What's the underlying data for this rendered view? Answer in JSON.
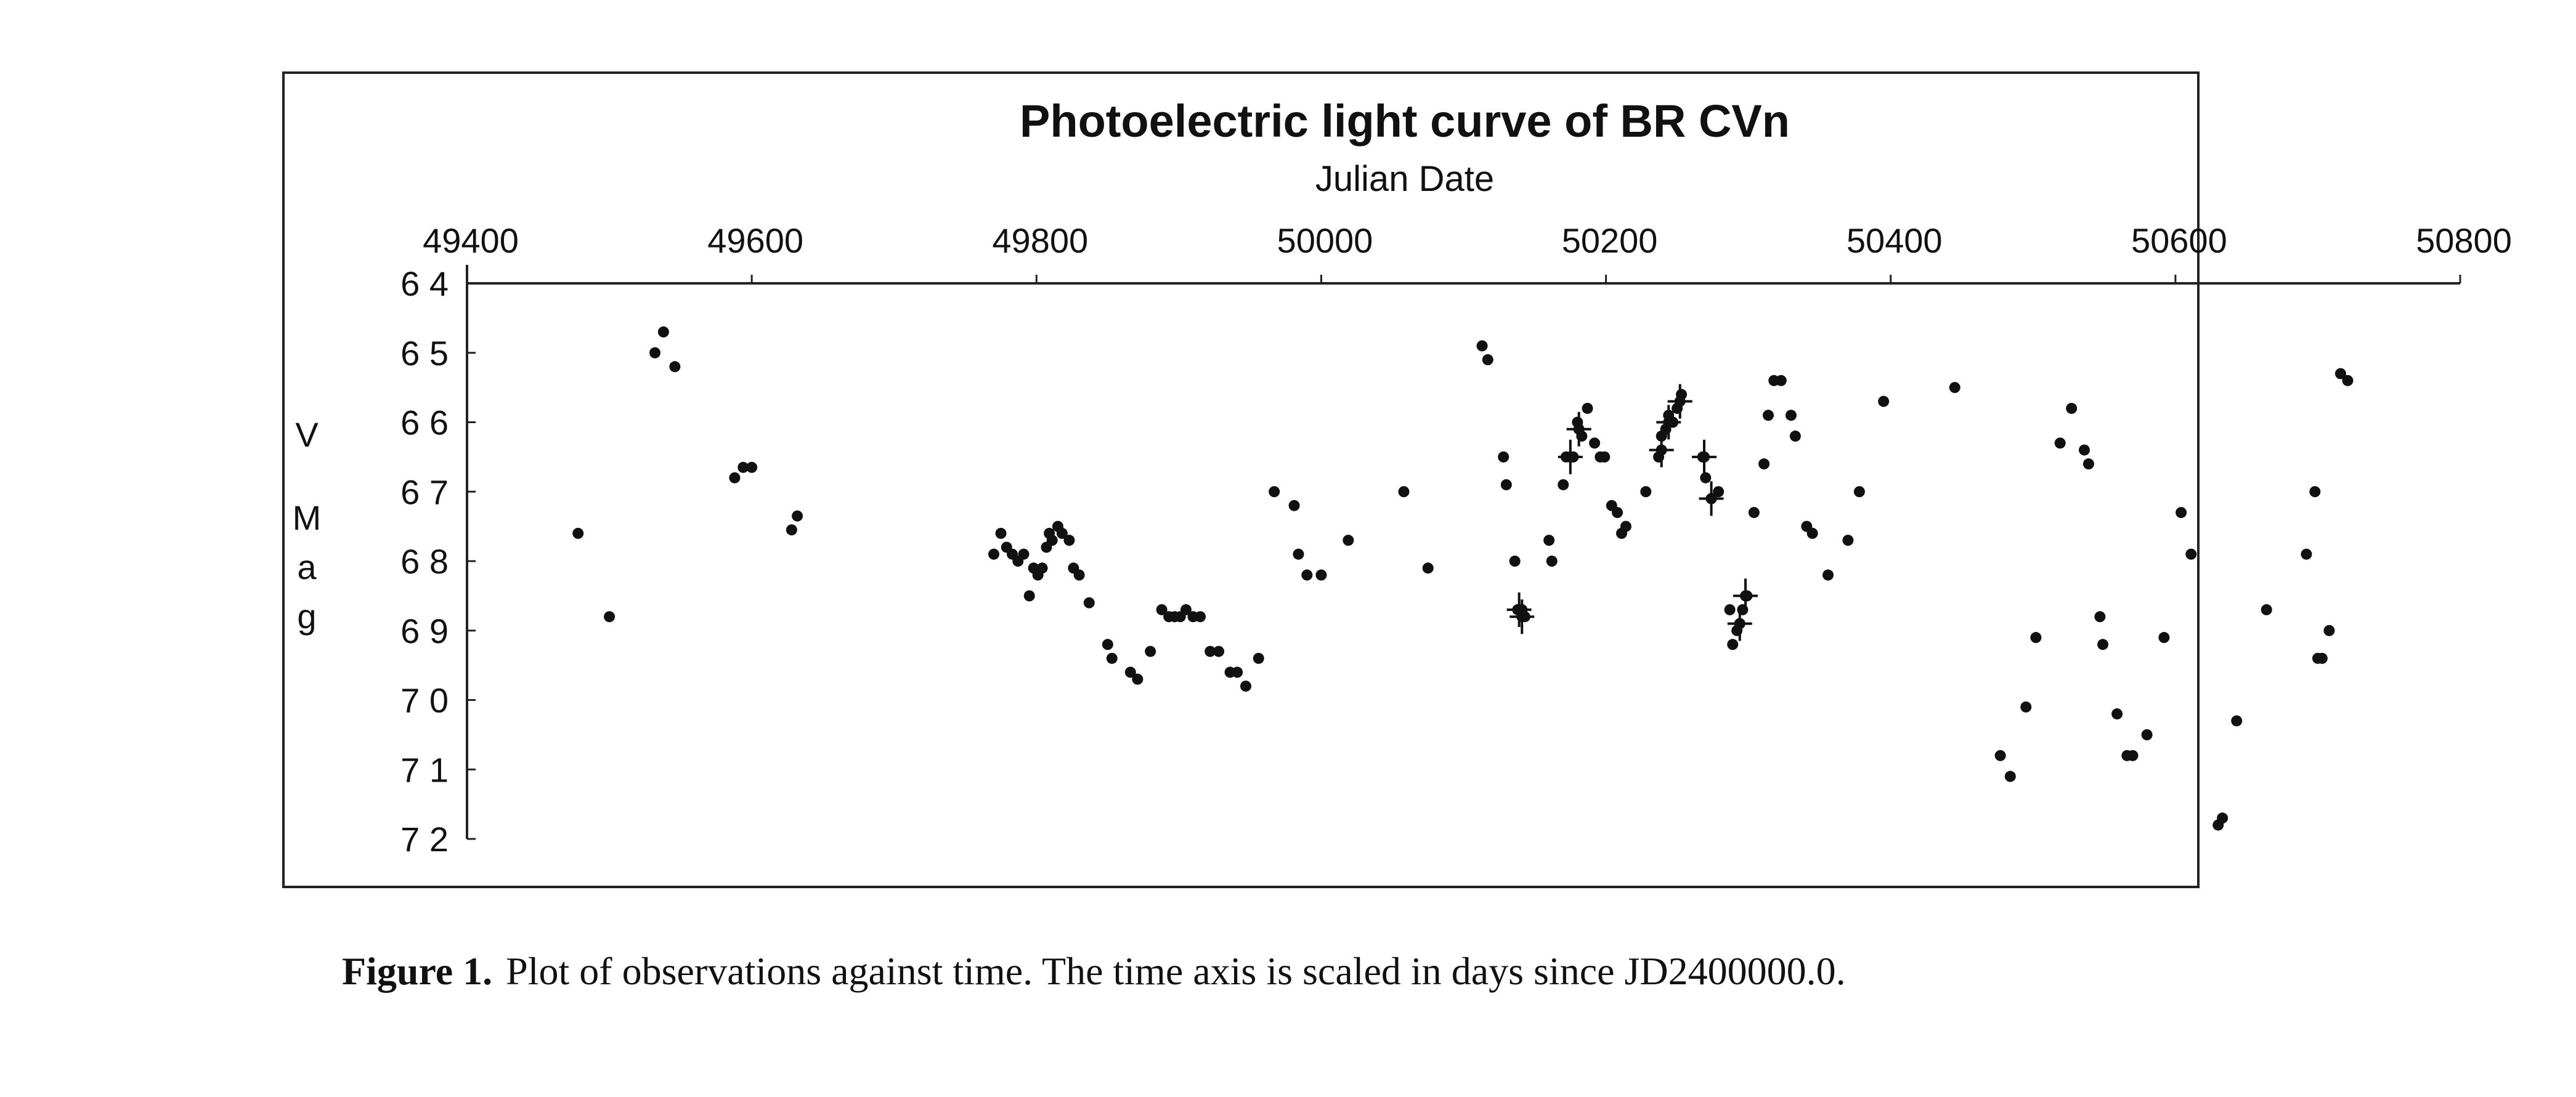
{
  "chart_data": {
    "type": "scatter",
    "title": "Photoelectric light curve of BR CVn",
    "xlabel": "Julian Date",
    "ylabel_letters": [
      "V",
      "M",
      "a",
      "g"
    ],
    "xlim": [
      49400,
      50800
    ],
    "ylim": [
      6.4,
      7.2
    ],
    "y_inverted": true,
    "x_axis_position": "top",
    "x_ticks": [
      49400,
      49600,
      49800,
      50000,
      50200,
      50400,
      50600,
      50800
    ],
    "x_tick_labels": [
      "49400",
      "49600",
      "49800",
      "50000",
      "50200",
      "50400",
      "50600",
      "50800"
    ],
    "y_ticks": [
      6.4,
      6.5,
      6.6,
      6.7,
      6.8,
      6.9,
      7.0,
      7.1,
      7.2
    ],
    "y_tick_labels": [
      "6 4",
      "6 5",
      "6 6",
      "6 7",
      "6 8",
      "6 9",
      "7 0",
      "7 1",
      "7 2"
    ],
    "grid": false,
    "legend": "none",
    "marker_color": "#111111",
    "points": [
      [
        49478,
        6.76
      ],
      [
        49500,
        6.88
      ],
      [
        49532,
        6.5
      ],
      [
        49538,
        6.47
      ],
      [
        49546,
        6.52
      ],
      [
        49588,
        6.68
      ],
      [
        49594,
        6.665
      ],
      [
        49600,
        6.665
      ],
      [
        49628,
        6.755
      ],
      [
        49632,
        6.735
      ],
      [
        49770,
        6.79
      ],
      [
        49775,
        6.76
      ],
      [
        49779,
        6.78
      ],
      [
        49783,
        6.79
      ],
      [
        49787,
        6.8
      ],
      [
        49791,
        6.79
      ],
      [
        49795,
        6.85
      ],
      [
        49798,
        6.81
      ],
      [
        49801,
        6.82
      ],
      [
        49804,
        6.81
      ],
      [
        49807,
        6.78
      ],
      [
        49809,
        6.76
      ],
      [
        49811,
        6.77
      ],
      [
        49815,
        6.75
      ],
      [
        49818,
        6.76
      ],
      [
        49823,
        6.77
      ],
      [
        49826,
        6.81
      ],
      [
        49830,
        6.82
      ],
      [
        49837,
        6.86
      ],
      [
        49850,
        6.92
      ],
      [
        49853,
        6.94
      ],
      [
        49866,
        6.96
      ],
      [
        49871,
        6.97
      ],
      [
        49880,
        6.93
      ],
      [
        49888,
        6.87
      ],
      [
        49893,
        6.88
      ],
      [
        49897,
        6.88
      ],
      [
        49901,
        6.88
      ],
      [
        49905,
        6.87
      ],
      [
        49910,
        6.88
      ],
      [
        49915,
        6.88
      ],
      [
        49922,
        6.93
      ],
      [
        49928,
        6.93
      ],
      [
        49936,
        6.96
      ],
      [
        49941,
        6.96
      ],
      [
        49947,
        6.98
      ],
      [
        49956,
        6.94
      ],
      [
        49967,
        6.7
      ],
      [
        49981,
        6.72
      ],
      [
        49984,
        6.79
      ],
      [
        49990,
        6.82
      ],
      [
        50000,
        6.82
      ],
      [
        50019,
        6.77
      ],
      [
        50058,
        6.7
      ],
      [
        50075,
        6.81
      ],
      [
        50113,
        6.49
      ],
      [
        50117,
        6.51
      ],
      [
        50128,
        6.65
      ],
      [
        50130,
        6.69
      ],
      [
        50136,
        6.8
      ],
      [
        50138,
        6.87
      ],
      [
        50141,
        6.87
      ],
      [
        50143,
        6.88
      ],
      [
        50160,
        6.77
      ],
      [
        50162,
        6.8
      ],
      [
        50170,
        6.69
      ],
      [
        50172,
        6.65
      ],
      [
        50177,
        6.65
      ],
      [
        50180,
        6.6
      ],
      [
        50183,
        6.62
      ],
      [
        50187,
        6.58
      ],
      [
        50192,
        6.63
      ],
      [
        50196,
        6.65
      ],
      [
        50199,
        6.65
      ],
      [
        50204,
        6.72
      ],
      [
        50208,
        6.73
      ],
      [
        50211,
        6.76
      ],
      [
        50214,
        6.75
      ],
      [
        50228,
        6.7
      ],
      [
        50237,
        6.65
      ],
      [
        50239,
        6.62
      ],
      [
        50242,
        6.61
      ],
      [
        50244,
        6.59
      ],
      [
        50247,
        6.6
      ],
      [
        50250,
        6.58
      ],
      [
        50253,
        6.56
      ],
      [
        50268,
        6.65
      ],
      [
        50270,
        6.68
      ],
      [
        50274,
        6.71
      ],
      [
        50279,
        6.7
      ],
      [
        50287,
        6.87
      ],
      [
        50289,
        6.92
      ],
      [
        50292,
        6.9
      ],
      [
        50294,
        6.89
      ],
      [
        50296,
        6.87
      ],
      [
        50299,
        6.85
      ],
      [
        50304,
        6.73
      ],
      [
        50311,
        6.66
      ],
      [
        50314,
        6.59
      ],
      [
        50318,
        6.54
      ],
      [
        50323,
        6.54
      ],
      [
        50330,
        6.59
      ],
      [
        50333,
        6.62
      ],
      [
        50341,
        6.75
      ],
      [
        50345,
        6.76
      ],
      [
        50356,
        6.82
      ],
      [
        50370,
        6.77
      ],
      [
        50378,
        6.7
      ],
      [
        50395,
        6.57
      ],
      [
        50445,
        6.55
      ],
      [
        50477,
        7.08
      ],
      [
        50484,
        7.11
      ],
      [
        50495,
        7.01
      ],
      [
        50502,
        6.91
      ],
      [
        50519,
        6.63
      ],
      [
        50527,
        6.58
      ],
      [
        50536,
        6.64
      ],
      [
        50539,
        6.66
      ],
      [
        50547,
        6.88
      ],
      [
        50549,
        6.92
      ],
      [
        50559,
        7.02
      ],
      [
        50566,
        7.08
      ],
      [
        50570,
        7.08
      ],
      [
        50580,
        7.05
      ],
      [
        50592,
        6.91
      ],
      [
        50604,
        6.73
      ],
      [
        50611,
        6.79
      ],
      [
        50630,
        7.18
      ],
      [
        50633,
        7.17
      ],
      [
        50643,
        7.03
      ],
      [
        50664,
        6.87
      ],
      [
        50692,
        6.79
      ],
      [
        50698,
        6.7
      ],
      [
        50700,
        6.94
      ],
      [
        50703,
        6.94
      ],
      [
        50708,
        6.9
      ],
      [
        50716,
        6.53
      ],
      [
        50721,
        6.54
      ]
    ],
    "error_bar_points": [
      [
        50139,
        6.87
      ],
      [
        50141,
        6.88
      ],
      [
        50175,
        6.65
      ],
      [
        50181,
        6.61
      ],
      [
        50239,
        6.64
      ],
      [
        50244,
        6.6
      ],
      [
        50252,
        6.57
      ],
      [
        50269,
        6.65
      ],
      [
        50274,
        6.71
      ],
      [
        50294,
        6.89
      ],
      [
        50298,
        6.85
      ]
    ]
  },
  "caption": {
    "lead": "Figure 1.",
    "text": "Plot of observations against time. The time axis is scaled in days since JD2400000.0."
  }
}
